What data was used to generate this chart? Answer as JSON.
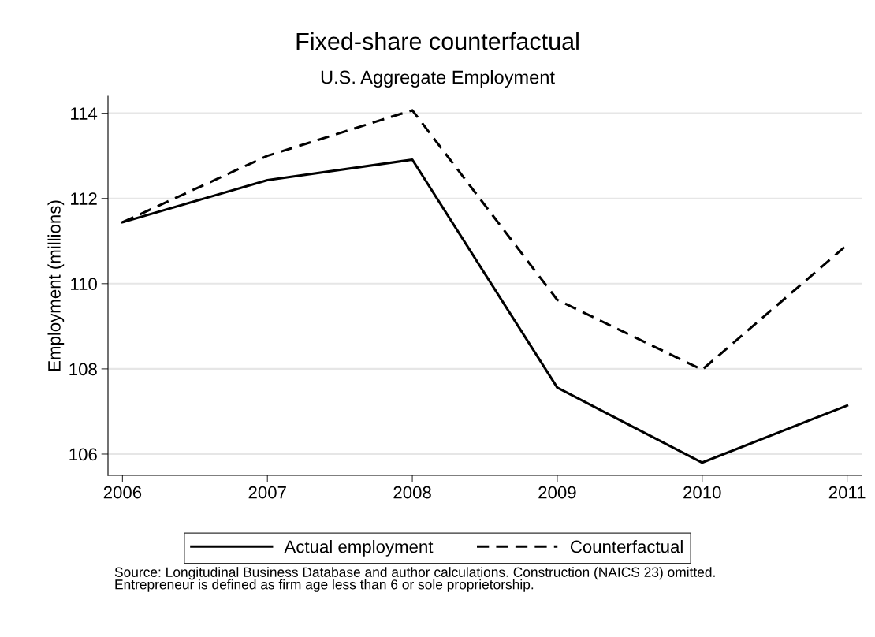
{
  "chart_data": {
    "type": "line",
    "title": "Fixed-share counterfactual",
    "subtitle": "U.S. Aggregate Employment",
    "ylabel": "Employment (millions)",
    "x": [
      2006,
      2007,
      2008,
      2009,
      2010,
      2011
    ],
    "series": [
      {
        "name": "Actual employment",
        "color": "#000000",
        "line_style": "solid",
        "values": [
          111.44,
          112.43,
          112.91,
          107.56,
          105.8,
          107.14
        ]
      },
      {
        "name": "Counterfactual",
        "color": "#000000",
        "line_style": "dashed",
        "values": [
          111.44,
          113.0,
          114.07,
          109.62,
          107.98,
          110.91
        ]
      }
    ],
    "xlim": [
      2005.9,
      2011.1
    ],
    "xticks": [
      2006,
      2007,
      2008,
      2009,
      2010,
      2011
    ],
    "ylim": [
      105.5,
      114.4
    ],
    "yticks": [
      106,
      108,
      110,
      112,
      114
    ],
    "grid": "y",
    "legend": "bottom",
    "marker": "none",
    "annotations": [
      "Source: Longitudinal Business Database and author calculations. Construction (NAICS 23) omitted.\nEntrepreneur is defined as firm age less than 6 or sole proprietorship."
    ]
  }
}
